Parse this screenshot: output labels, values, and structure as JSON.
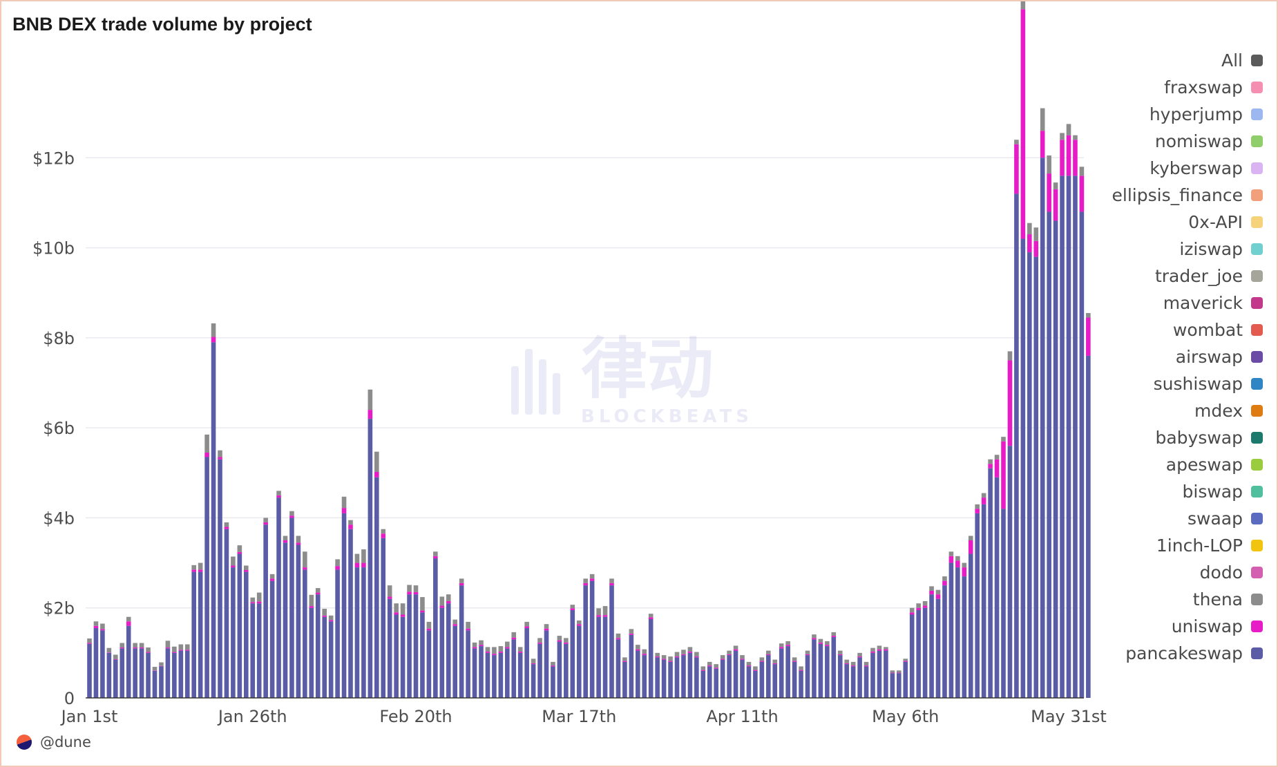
{
  "chart_data": {
    "type": "bar",
    "stacked": true,
    "title": "BNB DEX trade volume by project",
    "xlabel": "",
    "ylabel": "",
    "ylim": [
      0,
      14000000000
    ],
    "y_ticks": [
      {
        "value": 0,
        "label": "0"
      },
      {
        "value": 2000000000,
        "label": "$2b"
      },
      {
        "value": 4000000000,
        "label": "$4b"
      },
      {
        "value": 6000000000,
        "label": "$6b"
      },
      {
        "value": 8000000000,
        "label": "$8b"
      },
      {
        "value": 10000000000,
        "label": "$10b"
      },
      {
        "value": 12000000000,
        "label": "$12b"
      }
    ],
    "x_start": "2023-01-01",
    "x_ticks": [
      {
        "date": "2023-01-01",
        "label": "Jan 1st"
      },
      {
        "date": "2023-01-26",
        "label": "Jan 26th"
      },
      {
        "date": "2023-02-20",
        "label": "Feb 20th"
      },
      {
        "date": "2023-03-17",
        "label": "Mar 17th"
      },
      {
        "date": "2023-04-11",
        "label": "Apr 11th"
      },
      {
        "date": "2023-05-06",
        "label": "May 6th"
      },
      {
        "date": "2023-05-31",
        "label": "May 31st"
      }
    ],
    "grid": true,
    "legend_position": "right",
    "legend": [
      {
        "name": "All",
        "color": "#5b5b5b"
      },
      {
        "name": "fraxswap",
        "color": "#f48fb1"
      },
      {
        "name": "hyperjump",
        "color": "#9db7f0"
      },
      {
        "name": "nomiswap",
        "color": "#8fce6b"
      },
      {
        "name": "kyberswap",
        "color": "#d9b3f2"
      },
      {
        "name": "ellipsis_finance",
        "color": "#f2a07b"
      },
      {
        "name": "0x-API",
        "color": "#f6d27a"
      },
      {
        "name": "iziswap",
        "color": "#6fd0cf"
      },
      {
        "name": "trader_joe",
        "color": "#a5a59a"
      },
      {
        "name": "maverick",
        "color": "#c2388b"
      },
      {
        "name": "wombat",
        "color": "#e35b4f"
      },
      {
        "name": "airswap",
        "color": "#6a4ba6"
      },
      {
        "name": "sushiswap",
        "color": "#2f86c4"
      },
      {
        "name": "mdex",
        "color": "#de7c12"
      },
      {
        "name": "babyswap",
        "color": "#1c7a6c"
      },
      {
        "name": "apeswap",
        "color": "#9bcc3e"
      },
      {
        "name": "biswap",
        "color": "#4fbf9e"
      },
      {
        "name": "swaap",
        "color": "#5b6bc0"
      },
      {
        "name": "1inch-LOP",
        "color": "#f1c40f"
      },
      {
        "name": "dodo",
        "color": "#d45fb0"
      },
      {
        "name": "thena",
        "color": "#8c8c8c"
      },
      {
        "name": "uniswap",
        "color": "#e81cc6"
      },
      {
        "name": "pancakeswap",
        "color": "#5a5ca6"
      }
    ],
    "series": [
      {
        "name": "pancakeswap",
        "color": "#5a5ca6",
        "values": [
          1.2,
          1.55,
          1.5,
          1.0,
          0.85,
          1.1,
          1.6,
          1.1,
          1.1,
          1.0,
          0.6,
          0.7,
          1.1,
          1.0,
          1.05,
          1.05,
          2.8,
          2.8,
          5.35,
          7.9,
          5.3,
          3.75,
          2.9,
          3.2,
          2.8,
          2.1,
          2.1,
          3.85,
          2.6,
          4.45,
          3.45,
          4.0,
          3.4,
          2.85,
          2.0,
          2.3,
          1.8,
          1.7,
          2.85,
          4.1,
          3.75,
          2.9,
          2.9,
          6.2,
          4.9,
          3.55,
          2.2,
          1.85,
          1.8,
          2.3,
          2.3,
          1.9,
          1.5,
          3.1,
          2.0,
          2.1,
          1.6,
          2.5,
          1.5,
          1.1,
          1.15,
          1.0,
          0.95,
          1.0,
          1.1,
          1.3,
          1.0,
          1.55,
          0.75,
          1.2,
          1.5,
          0.7,
          1.25,
          1.2,
          1.95,
          1.6,
          2.5,
          2.6,
          1.8,
          1.8,
          2.5,
          1.3,
          0.8,
          1.4,
          1.05,
          0.95,
          1.75,
          0.9,
          0.85,
          0.8,
          0.9,
          0.95,
          1.0,
          0.9,
          0.6,
          0.7,
          0.65,
          0.85,
          0.95,
          1.05,
          0.85,
          0.7,
          0.6,
          0.8,
          0.95,
          0.75,
          1.1,
          1.15,
          0.8,
          0.6,
          0.95,
          1.3,
          1.2,
          1.15,
          1.35,
          0.95,
          0.75,
          0.7,
          0.9,
          0.7,
          1.0,
          1.05,
          1.05,
          0.55,
          0.55,
          0.8,
          1.85,
          1.95,
          2.0,
          2.3,
          2.2,
          2.5,
          3.0,
          2.9,
          2.7,
          3.2,
          4.1,
          4.3,
          5.1,
          4.9,
          4.2,
          5.6,
          11.2,
          10.2,
          9.9,
          9.8,
          12.0,
          10.8,
          10.6,
          11.6,
          11.6,
          11.6,
          10.8,
          7.6
        ]
      },
      {
        "name": "uniswap",
        "color": "#e81cc6",
        "values": [
          0.02,
          0.05,
          0.03,
          0.01,
          0.01,
          0.02,
          0.1,
          0.02,
          0.02,
          0.02,
          0.01,
          0.01,
          0.02,
          0.02,
          0.02,
          0.02,
          0.05,
          0.05,
          0.1,
          0.12,
          0.05,
          0.05,
          0.04,
          0.04,
          0.04,
          0.03,
          0.04,
          0.05,
          0.05,
          0.05,
          0.05,
          0.05,
          0.05,
          0.05,
          0.04,
          0.04,
          0.03,
          0.03,
          0.08,
          0.12,
          0.1,
          0.1,
          0.1,
          0.2,
          0.12,
          0.1,
          0.05,
          0.05,
          0.05,
          0.06,
          0.05,
          0.04,
          0.04,
          0.05,
          0.05,
          0.05,
          0.04,
          0.05,
          0.04,
          0.03,
          0.03,
          0.03,
          0.03,
          0.03,
          0.03,
          0.04,
          0.03,
          0.04,
          0.02,
          0.03,
          0.04,
          0.02,
          0.03,
          0.03,
          0.04,
          0.04,
          0.05,
          0.05,
          0.04,
          0.04,
          0.05,
          0.03,
          0.02,
          0.03,
          0.03,
          0.03,
          0.04,
          0.02,
          0.02,
          0.02,
          0.02,
          0.02,
          0.03,
          0.02,
          0.02,
          0.02,
          0.02,
          0.02,
          0.02,
          0.03,
          0.02,
          0.02,
          0.02,
          0.02,
          0.02,
          0.02,
          0.03,
          0.03,
          0.02,
          0.02,
          0.02,
          0.03,
          0.03,
          0.03,
          0.03,
          0.02,
          0.02,
          0.02,
          0.02,
          0.02,
          0.03,
          0.03,
          0.03,
          0.01,
          0.01,
          0.02,
          0.05,
          0.05,
          0.05,
          0.08,
          0.1,
          0.1,
          0.15,
          0.15,
          0.2,
          0.3,
          0.1,
          0.15,
          0.1,
          0.4,
          1.5,
          1.9,
          1.1,
          5.1,
          0.4,
          0.35,
          0.6,
          0.85,
          0.7,
          0.8,
          0.9,
          0.8,
          0.8,
          0.85,
          1.0,
          0.8
        ]
      },
      {
        "name": "thena",
        "color": "#8c8c8c",
        "values": [
          0.1,
          0.1,
          0.12,
          0.1,
          0.1,
          0.1,
          0.1,
          0.1,
          0.1,
          0.1,
          0.08,
          0.08,
          0.15,
          0.12,
          0.12,
          0.12,
          0.1,
          0.15,
          0.4,
          0.3,
          0.15,
          0.1,
          0.2,
          0.15,
          0.1,
          0.1,
          0.2,
          0.1,
          0.1,
          0.1,
          0.1,
          0.1,
          0.15,
          0.35,
          0.25,
          0.1,
          0.15,
          0.1,
          0.15,
          0.25,
          0.1,
          0.2,
          0.3,
          0.45,
          0.45,
          0.1,
          0.25,
          0.2,
          0.25,
          0.15,
          0.15,
          0.3,
          0.15,
          0.1,
          0.2,
          0.15,
          0.1,
          0.1,
          0.15,
          0.1,
          0.1,
          0.1,
          0.15,
          0.12,
          0.12,
          0.12,
          0.1,
          0.1,
          0.1,
          0.1,
          0.1,
          0.08,
          0.1,
          0.1,
          0.08,
          0.08,
          0.1,
          0.1,
          0.15,
          0.2,
          0.1,
          0.1,
          0.08,
          0.1,
          0.1,
          0.1,
          0.08,
          0.08,
          0.08,
          0.1,
          0.1,
          0.1,
          0.1,
          0.1,
          0.08,
          0.08,
          0.08,
          0.08,
          0.08,
          0.08,
          0.08,
          0.08,
          0.08,
          0.08,
          0.08,
          0.08,
          0.08,
          0.08,
          0.08,
          0.08,
          0.08,
          0.08,
          0.08,
          0.08,
          0.08,
          0.08,
          0.08,
          0.08,
          0.08,
          0.08,
          0.08,
          0.08,
          0.05,
          0.05,
          0.05,
          0.05,
          0.1,
          0.1,
          0.1,
          0.1,
          0.1,
          0.1,
          0.1,
          0.1,
          0.1,
          0.1,
          0.1,
          0.1,
          0.1,
          0.1,
          0.1,
          0.2,
          0.1,
          0.2,
          0.25,
          0.3,
          0.5,
          0.4,
          0.15,
          0.15,
          0.25,
          0.1,
          0.2,
          0.1,
          0.1,
          0.1
        ]
      },
      {
        "name": "dodo",
        "color": "#d45fb0",
        "values": [
          0,
          0,
          0,
          0,
          0,
          0,
          0,
          0,
          0,
          0,
          0,
          0,
          0,
          0,
          0,
          0,
          0,
          0,
          0,
          0,
          0,
          0,
          0,
          0,
          0,
          0,
          0,
          0,
          0,
          0,
          0,
          0,
          0,
          0,
          0,
          0,
          0,
          0,
          0,
          0,
          0,
          0,
          0,
          0,
          0,
          0,
          0,
          0,
          0,
          0,
          0,
          0,
          0,
          0,
          0,
          0,
          0,
          0,
          0,
          0,
          0,
          0,
          0,
          0,
          0,
          0,
          0,
          0,
          0,
          0,
          0,
          0,
          0,
          0,
          0,
          0,
          0,
          0,
          0,
          0,
          0,
          0,
          0,
          0,
          0,
          0,
          0,
          0,
          0,
          0,
          0,
          0,
          0,
          0,
          0,
          0,
          0,
          0,
          0,
          0,
          0,
          0,
          0,
          0,
          0,
          0,
          0,
          0,
          0,
          0,
          0,
          0,
          0,
          0,
          0,
          0,
          0,
          0,
          0,
          0,
          0,
          0,
          0,
          0,
          0,
          0,
          0,
          0,
          0,
          0,
          0,
          0,
          0,
          0,
          0,
          0,
          0,
          0,
          0,
          0,
          0,
          0,
          0,
          0,
          0,
          0,
          0,
          0,
          0,
          0,
          0,
          0,
          0,
          0,
          0,
          0,
          0,
          0.1,
          0,
          0,
          0,
          0,
          0,
          0,
          0
        ]
      }
    ]
  },
  "watermark": {
    "main": "律动",
    "sub": "BLOCKBEATS"
  },
  "credit": {
    "text": "@dune",
    "icon": "dune-logo-icon"
  }
}
